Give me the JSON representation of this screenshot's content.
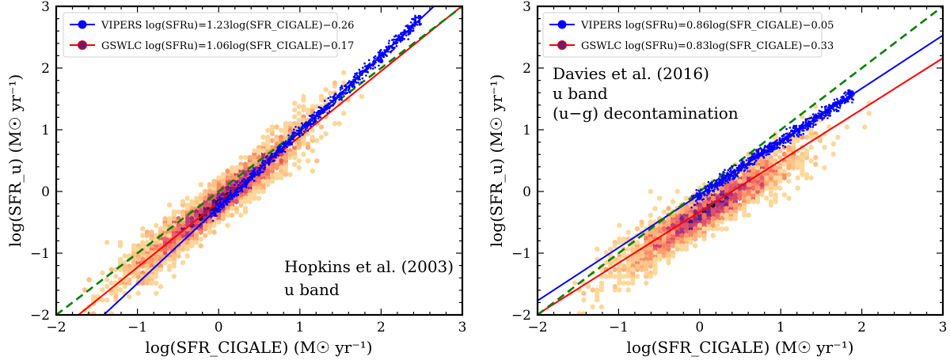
{
  "chart_data": [
    {
      "type": "scatter",
      "xlabel": "log(SFR_CIGALE) (M☉ yr⁻¹)",
      "ylabel": "log(SFR_u) (M☉ yr⁻¹)",
      "xlim": [
        -2,
        3
      ],
      "ylim": [
        -2,
        3
      ],
      "xticks": [
        -2,
        -1,
        0,
        1,
        2,
        3
      ],
      "yticks": [
        -2,
        -1,
        0,
        1,
        2,
        3
      ],
      "xtick_labels": [
        "−2",
        "−1",
        "0",
        "1",
        "2",
        "3"
      ],
      "ytick_labels": [
        "−2",
        "−1",
        "0",
        "1",
        "2",
        "3"
      ],
      "legend_position": "top-left",
      "legend": [
        {
          "name": "VIPERS",
          "label": "VIPERS log(SFRu)=1.23log(SFR_CIGALE)−0.26",
          "color": "#0000ff"
        },
        {
          "name": "GSWLC",
          "label": "GSWLC log(SFRu)=1.06log(SFR_CIGALE)−0.17",
          "color": "#ff0000"
        }
      ],
      "lines": [
        {
          "name": "VIPERS fit",
          "slope": 1.23,
          "intercept": -0.26,
          "color": "#0000ff",
          "style": "solid"
        },
        {
          "name": "GSWLC fit",
          "slope": 1.06,
          "intercept": -0.17,
          "color": "#ff0000",
          "style": "solid"
        },
        {
          "name": "one-to-one",
          "slope": 1.0,
          "intercept": 0.0,
          "color": "#008000",
          "style": "dashed"
        }
      ],
      "scatter": {
        "name": "VIPERS points",
        "color": "#0000ff",
        "x_range": [
          -0.1,
          2.5
        ],
        "slope": 1.23,
        "intercept": -0.26,
        "scatter_dex": 0.05
      },
      "density": {
        "name": "GSWLC hexbin",
        "colormap": "magma_r",
        "center_x": 0.0,
        "center_y": -0.15,
        "spread": 0.55
      },
      "annotations": [
        "Hopkins et al. (2003)",
        "u band"
      ]
    },
    {
      "type": "scatter",
      "xlabel": "log(SFR_CIGALE) (M☉ yr⁻¹)",
      "ylabel": "log(SFR_u) (M☉ yr⁻¹)",
      "xlim": [
        -2,
        3
      ],
      "ylim": [
        -2,
        3
      ],
      "xticks": [
        -2,
        -1,
        0,
        1,
        2,
        3
      ],
      "yticks": [
        -2,
        -1,
        0,
        1,
        2,
        3
      ],
      "xtick_labels": [
        "−2",
        "−1",
        "0",
        "1",
        "2",
        "3"
      ],
      "ytick_labels": [
        "−2",
        "−1",
        "0",
        "1",
        "2",
        "3"
      ],
      "legend_position": "top-left",
      "legend": [
        {
          "name": "VIPERS",
          "label": "VIPERS log(SFRu)=0.86log(SFR_CIGALE)−0.05",
          "color": "#0000ff"
        },
        {
          "name": "GSWLC",
          "label": "GSWLC log(SFRu)=0.83log(SFR_CIGALE)−0.33",
          "color": "#ff0000"
        }
      ],
      "lines": [
        {
          "name": "VIPERS fit",
          "slope": 0.86,
          "intercept": -0.05,
          "color": "#0000ff",
          "style": "solid"
        },
        {
          "name": "GSWLC fit",
          "slope": 0.83,
          "intercept": -0.33,
          "color": "#ff0000",
          "style": "solid"
        },
        {
          "name": "one-to-one",
          "slope": 1.0,
          "intercept": 0.0,
          "color": "#008000",
          "style": "dashed"
        }
      ],
      "scatter": {
        "name": "VIPERS points",
        "color": "#0000ff",
        "x_range": [
          -0.1,
          1.9
        ],
        "slope": 0.86,
        "intercept": -0.05,
        "scatter_dex": 0.05
      },
      "density": {
        "name": "GSWLC hexbin",
        "colormap": "magma_r",
        "center_x": 0.1,
        "center_y": -0.3,
        "spread": 0.55
      },
      "annotations": [
        "Davies et al. (2016)",
        "u band",
        "(u−g) decontamination"
      ]
    }
  ]
}
